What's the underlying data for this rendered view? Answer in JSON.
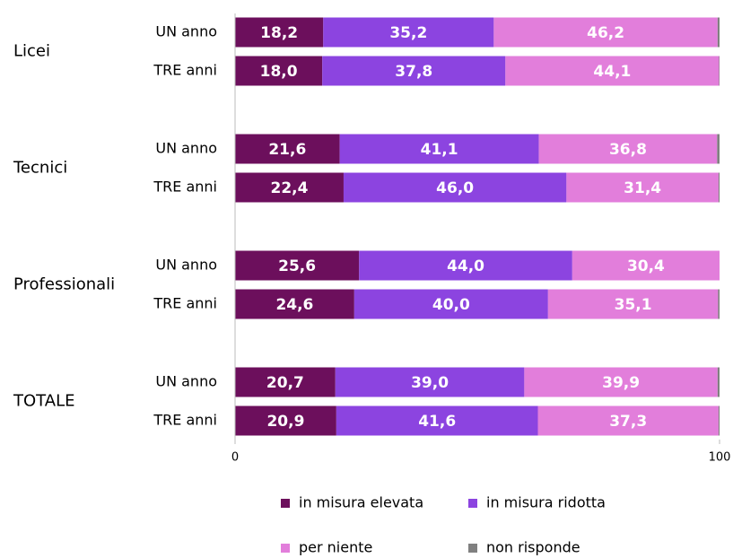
{
  "chart_data": {
    "type": "stacked-bar-horizontal",
    "groups": [
      "Licei",
      "Tecnici",
      "Professionali",
      "TOTALE"
    ],
    "categories": [
      "UN anno",
      "TRE anni",
      "UN anno",
      "TRE anni",
      "UN anno",
      "TRE anni",
      "UN anno",
      "TRE anni"
    ],
    "series": [
      {
        "name": "in misura elevata",
        "color": "#6c0f5c",
        "values": [
          18.2,
          18.0,
          21.6,
          22.4,
          25.6,
          24.6,
          20.7,
          20.9
        ],
        "value_labels": [
          "18,2",
          "18,0",
          "21,6",
          "22,4",
          "25,6",
          "24,6",
          "20,7",
          "20,9"
        ]
      },
      {
        "name": "in misura ridotta",
        "color": "#8c44e0",
        "values": [
          35.2,
          37.8,
          41.1,
          46.0,
          44.0,
          40.0,
          39.0,
          41.6
        ],
        "value_labels": [
          "35,2",
          "37,8",
          "41,1",
          "46,0",
          "44,0",
          "40,0",
          "39,0",
          "41,6"
        ]
      },
      {
        "name": "per niente",
        "color": "#e27edb",
        "values": [
          46.2,
          44.1,
          36.8,
          31.4,
          30.4,
          35.1,
          39.9,
          37.3
        ],
        "value_labels": [
          "46,2",
          "44,1",
          "36,8",
          "31,4",
          "30,4",
          "35,1",
          "39,9",
          "37,3"
        ]
      },
      {
        "name": "non risponde",
        "color": "#808080",
        "values": [
          0.4,
          0.1,
          0.5,
          0.2,
          0.0,
          0.3,
          0.4,
          0.2
        ]
      }
    ],
    "xlim": [
      0,
      100
    ],
    "xticks": [
      0,
      100
    ]
  }
}
